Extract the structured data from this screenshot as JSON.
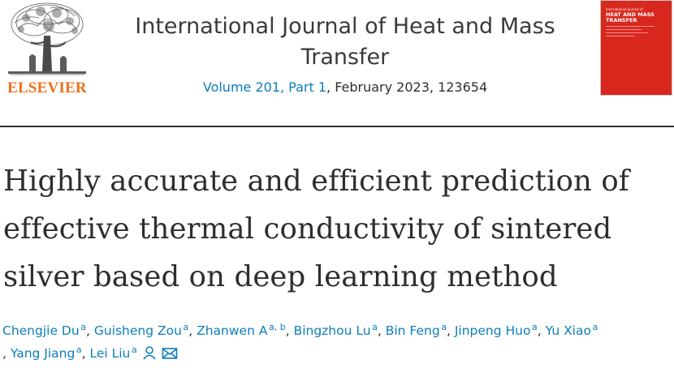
{
  "publisher": {
    "name": "ELSEVIER"
  },
  "journal": {
    "title": "International Journal of Heat and Mass Transfer",
    "issue_link": "Volume 201, Part 1",
    "issue_rest": ", February 2023, 123654"
  },
  "cover": {
    "small_text": "International Journal of",
    "title": "HEAT AND MASS TRANSFER",
    "colors": {
      "background": "#d8281e",
      "text": "#ffffff"
    }
  },
  "article": {
    "title": "Highly accurate and efficient prediction of effective thermal conductivity of sintered silver based on deep learning method"
  },
  "authors": [
    {
      "name": "Chengjie Du",
      "aff": "a"
    },
    {
      "name": "Guisheng Zou",
      "aff": "a"
    },
    {
      "name": "Zhanwen A",
      "aff": "a, b"
    },
    {
      "name": "Bingzhou Lu",
      "aff": "a"
    },
    {
      "name": "Bin Feng",
      "aff": "a"
    },
    {
      "name": "Jinpeng Huo",
      "aff": "a"
    },
    {
      "name": "Yu Xiao",
      "aff": "a"
    },
    {
      "name": "Yang Jiang",
      "aff": "a"
    },
    {
      "name": "Lei Liu",
      "aff": "a"
    }
  ],
  "author_separator": ", ",
  "icons": {
    "person": "person-icon",
    "email": "envelope-icon"
  },
  "colors": {
    "link": "#0c7dbb",
    "publisher_orange": "#e9711c",
    "text": "#2e2e2e"
  }
}
